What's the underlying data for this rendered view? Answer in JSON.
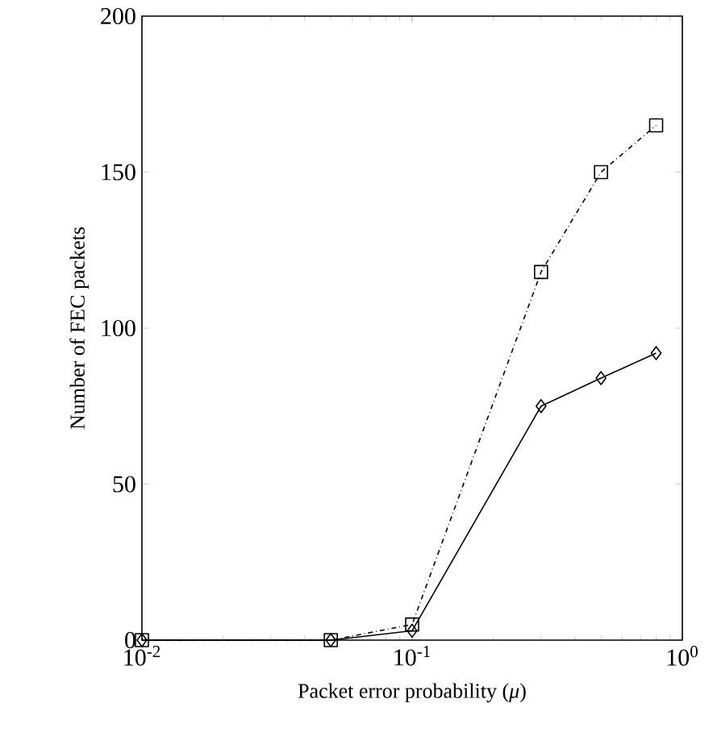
{
  "chart_data": {
    "type": "line",
    "xlabel": "Packet error probability (*μ*)",
    "ylabel": "Number of FEC packets",
    "x": [
      0.01,
      0.05,
      0.1,
      0.3,
      0.5,
      0.8
    ],
    "series": [
      {
        "color": "#000000",
        "values": [
          0,
          0,
          5,
          118,
          150,
          165
        ],
        "marker": "square",
        "line_style": "dashdot"
      },
      {
        "color": "#000000",
        "values": [
          0,
          0,
          3,
          75,
          84,
          92
        ],
        "marker": "diamond",
        "line_style": "solid"
      }
    ],
    "log": "x",
    "xlim": [
      0.01,
      1
    ],
    "ylim": [
      0,
      200
    ],
    "xticks": [
      {
        "value": 0.01,
        "label": "10$^{-2}$"
      },
      {
        "value": 0.1,
        "label": "10$^{-1}$"
      },
      {
        "value": 1,
        "label": "10$^{0}$"
      }
    ],
    "yticks": [
      0,
      50,
      100,
      150,
      200
    ],
    "grid": false
  }
}
